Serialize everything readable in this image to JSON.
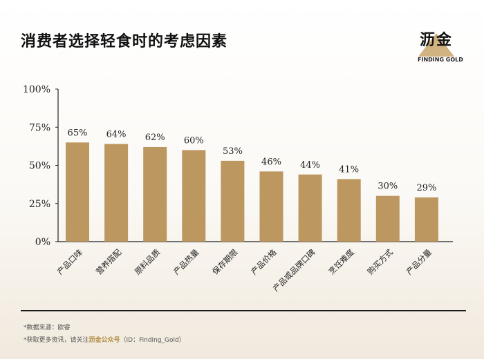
{
  "header": {
    "title": "消费者选择轻食时的考虑因素"
  },
  "logo": {
    "name": "沥金",
    "tagline": "FINDING GOLD",
    "color": "#b8935a"
  },
  "chart_data": {
    "type": "bar",
    "title": "消费者选择轻食时的考虑因素",
    "categories": [
      "产品口味",
      "营养搭配",
      "原料品质",
      "产品热量",
      "保存期限",
      "产品价格",
      "产品或品牌口碑",
      "烹饪难度",
      "购买方式",
      "产品分量"
    ],
    "values": [
      65,
      64,
      62,
      60,
      53,
      46,
      44,
      41,
      30,
      29
    ],
    "value_labels": [
      "65%",
      "64%",
      "62%",
      "60%",
      "53%",
      "46%",
      "44%",
      "41%",
      "30%",
      "29%"
    ],
    "yticks": [
      0,
      25,
      50,
      75,
      100
    ],
    "ytick_labels": [
      "0%",
      "25%",
      "50%",
      "75%",
      "100%"
    ],
    "ylim": [
      0,
      100
    ],
    "xlabel": "",
    "ylabel": "",
    "bar_color": "#bc975f",
    "grid": false,
    "legend": "none"
  },
  "footer": {
    "source": "*数据来源：欧睿",
    "more_prefix": "*获取更多资讯，请关注",
    "more_highlight": "沥金公众号",
    "more_suffix": "（ID：Finding_Gold）"
  }
}
